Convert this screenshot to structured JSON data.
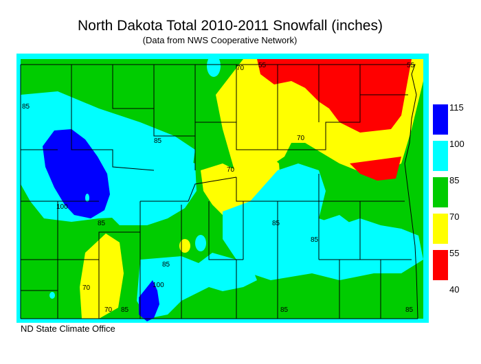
{
  "title": "North Dakota Total 2010-2011 Snowfall (inches)",
  "subtitle": "(Data from NWS Cooperative Network)",
  "credit": "ND State Climate Office",
  "legend": {
    "ticks": [
      "115",
      "100",
      "85",
      "70",
      "55",
      "40"
    ],
    "bins": [
      {
        "color": "#0000ff"
      },
      {
        "color": "#00ffff"
      },
      {
        "color": "#00cc00"
      },
      {
        "color": "#ffff00"
      },
      {
        "color": "#ff0000"
      }
    ]
  },
  "colors": {
    "border": "#00ffff",
    "county_lines": "#000000"
  },
  "contour_labels": [
    "85",
    "85",
    "85",
    "70",
    "70",
    "70",
    "70",
    "70",
    "85",
    "85",
    "85",
    "85",
    "85",
    "85",
    "100",
    "100",
    "55",
    "55"
  ]
}
